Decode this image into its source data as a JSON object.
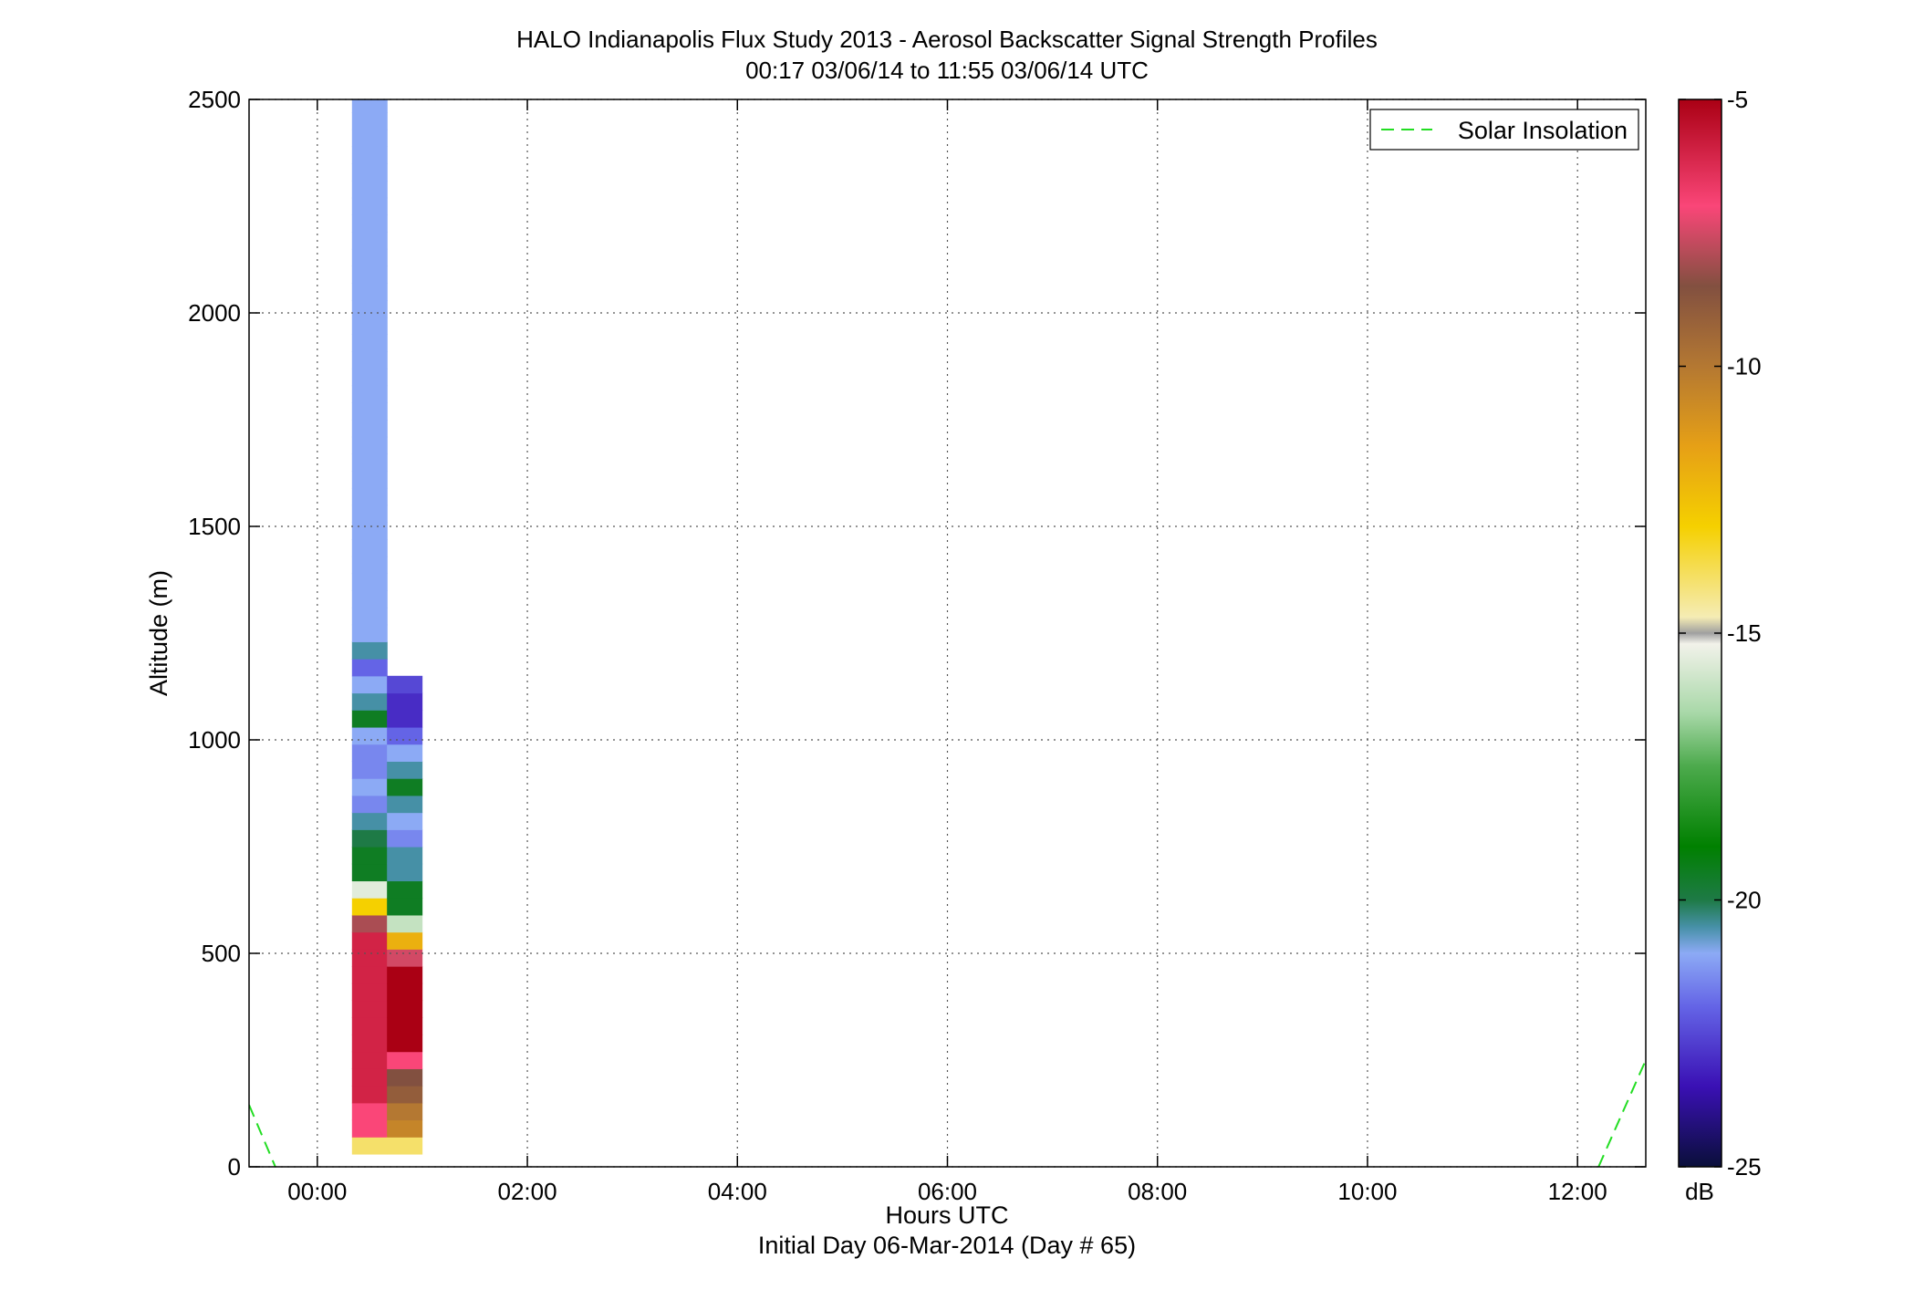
{
  "chart_data": {
    "type": "heatmap",
    "title": "HALO Indianapolis Flux Study 2013 - Aerosol Backscatter Signal Strength Profiles",
    "subtitle": "00:17 03/06/14 to 11:55 03/06/14  UTC",
    "xlabel": "Hours UTC",
    "xlabel2": "Initial Day 06-Mar-2014 (Day # 65)",
    "ylabel": "Altitude (m)",
    "xlim": [
      -0.65,
      12.65
    ],
    "ylim": [
      0,
      2500
    ],
    "x_ticks": [
      0,
      2,
      4,
      6,
      8,
      10,
      12
    ],
    "x_tick_labels": [
      "00:00",
      "02:00",
      "04:00",
      "06:00",
      "08:00",
      "10:00",
      "12:00"
    ],
    "y_ticks": [
      0,
      500,
      1000,
      1500,
      2000,
      2500
    ],
    "y_tick_labels": [
      "0",
      "500",
      "1000",
      "1500",
      "2000",
      "2500"
    ],
    "grid": true,
    "legend": {
      "position": "top-right",
      "entries": [
        {
          "name": "Solar Insolation",
          "color": "#22dd22",
          "style": "dashed"
        }
      ]
    },
    "colorbar": {
      "min": -25,
      "max": -5,
      "unit": "dB",
      "ticks": [
        -5,
        -10,
        -15,
        -20,
        -25
      ],
      "tick_labels": [
        "-5",
        "-10",
        "-15",
        "-20",
        "-25"
      ],
      "stops": [
        {
          "v": -25,
          "c": "#0a0f3a"
        },
        {
          "v": -23.5,
          "c": "#3a10b4"
        },
        {
          "v": -22,
          "c": "#6464e6"
        },
        {
          "v": -21,
          "c": "#8caaf5"
        },
        {
          "v": -20.5,
          "c": "#4690a6"
        },
        {
          "v": -20,
          "c": "#1e7a46"
        },
        {
          "v": -19,
          "c": "#008000"
        },
        {
          "v": -17.5,
          "c": "#4caa4c"
        },
        {
          "v": -16.5,
          "c": "#a8d8a8"
        },
        {
          "v": -15.2,
          "c": "#f2f2ea"
        },
        {
          "v": -15,
          "c": "#a0a0a0"
        },
        {
          "v": -14.7,
          "c": "#f5ecb4"
        },
        {
          "v": -13,
          "c": "#f5d000"
        },
        {
          "v": -11.5,
          "c": "#e6a016"
        },
        {
          "v": -10,
          "c": "#b47832"
        },
        {
          "v": -8.5,
          "c": "#825040"
        },
        {
          "v": -7,
          "c": "#fa4678"
        },
        {
          "v": -5,
          "c": "#aa0014"
        }
      ]
    },
    "solar_insolation": [
      {
        "x": [
          -0.65,
          -0.4
        ],
        "y": [
          145,
          0
        ]
      },
      {
        "x": [
          12.2,
          12.65
        ],
        "y": [
          0,
          250
        ]
      }
    ],
    "grid_x": {
      "start": 0.33,
      "step": 0.3333
    },
    "grid_y": {
      "start": 30,
      "step": 40
    },
    "columns": [
      [
        -14,
        -7,
        -7,
        -6,
        -6,
        -6,
        -6,
        -6,
        -6,
        -6,
        -6,
        -6,
        -6,
        -8,
        -13,
        -15.5,
        -19.5,
        -19.5,
        -20,
        -20.5,
        -21.5,
        -21,
        -21.5,
        -21.5,
        -21,
        -19.5,
        -20.5,
        -21,
        -22,
        -20.5,
        -21,
        -21,
        -21,
        -21,
        -21,
        -21,
        -21,
        -21,
        -21,
        -21,
        -21,
        -21,
        -21,
        -21,
        -21,
        -21,
        -21,
        -21,
        -21,
        -21,
        -21,
        -21,
        -21,
        -21,
        -21,
        -21,
        -21,
        -21,
        -21,
        -21,
        -21,
        -21,
        -21,
        -21,
        -21,
        -21,
        -21,
        -21,
        -21,
        -21,
        -21,
        -21,
        -21,
        -21,
        -21,
        -21,
        -21,
        -21,
        -21,
        -21,
        -21,
        -21,
        -21,
        -21
      ],
      [
        -14,
        -10.5,
        -10,
        -9,
        -8.5,
        -7,
        -5,
        -5,
        -5,
        -5,
        -5,
        -7.5,
        -12,
        -16,
        -19.5,
        -19.5,
        -20.5,
        -20.5,
        -21.5,
        -21,
        -20.5,
        -19.5,
        -20.5,
        -21,
        -22,
        -23,
        -23,
        -22.5
      ]
    ]
  }
}
